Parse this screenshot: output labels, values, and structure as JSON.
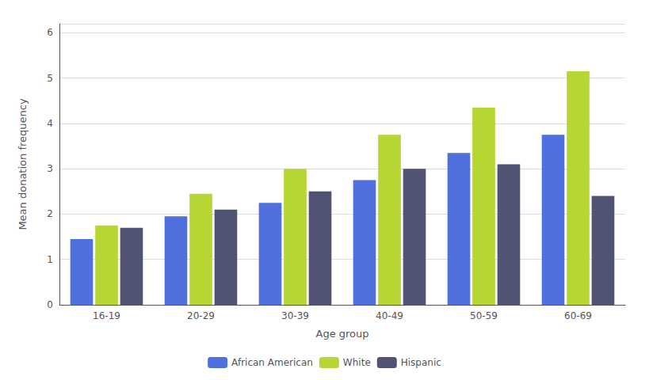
{
  "chart_data": {
    "type": "bar",
    "xlabel": "Age group",
    "ylabel": "Mean donation frequency",
    "categories": [
      "16-19",
      "20-29",
      "30-39",
      "40-49",
      "50-59",
      "60-69"
    ],
    "series": [
      {
        "name": "African American",
        "values": [
          1.45,
          1.95,
          2.25,
          2.75,
          3.35,
          3.75
        ]
      },
      {
        "name": "White",
        "values": [
          1.75,
          2.45,
          3.0,
          3.75,
          4.35,
          5.15
        ]
      },
      {
        "name": "Hispanic",
        "values": [
          1.7,
          2.1,
          2.5,
          3.0,
          3.1,
          2.4
        ]
      }
    ],
    "ylim": [
      0,
      6.2
    ],
    "yticks": [
      0,
      1,
      2,
      3,
      4,
      5,
      6
    ],
    "grid": true,
    "legend": "bottom"
  }
}
